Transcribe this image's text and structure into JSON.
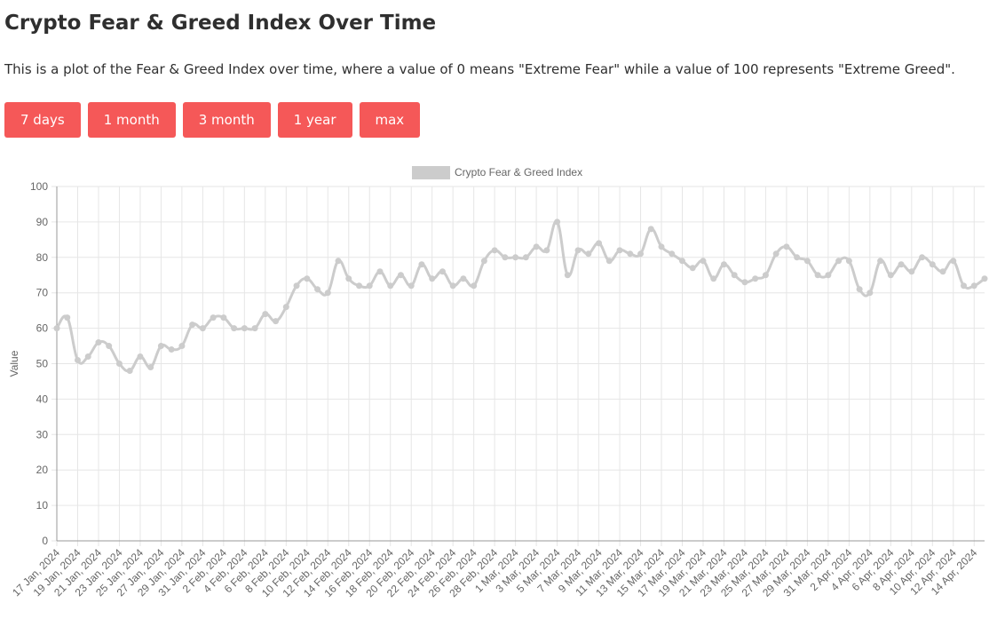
{
  "header": {
    "title": "Crypto Fear & Greed Index Over Time",
    "description": "This is a plot of the Fear & Greed Index over time, where a value of 0 means \"Extreme Fear\" while a value of 100 represents \"Extreme Greed\"."
  },
  "range_buttons": [
    {
      "label": "7 days"
    },
    {
      "label": "1 month"
    },
    {
      "label": "3 month"
    },
    {
      "label": "1 year"
    },
    {
      "label": "max"
    }
  ],
  "colors": {
    "button": "#f55858",
    "line": "#cccccc",
    "grid": "#e6e6e6"
  },
  "chart_data": {
    "type": "line",
    "title": "",
    "xlabel": "",
    "ylabel": "Value",
    "ylim": [
      0,
      100
    ],
    "y_ticks": [
      0,
      10,
      20,
      30,
      40,
      50,
      60,
      70,
      80,
      90,
      100
    ],
    "grid": true,
    "legend_position": "top-center",
    "x": [
      "17 Jan, 2024",
      "18 Jan, 2024",
      "19 Jan, 2024",
      "20 Jan, 2024",
      "21 Jan, 2024",
      "22 Jan, 2024",
      "23 Jan, 2024",
      "24 Jan, 2024",
      "25 Jan, 2024",
      "26 Jan, 2024",
      "27 Jan, 2024",
      "28 Jan, 2024",
      "29 Jan, 2024",
      "30 Jan, 2024",
      "31 Jan, 2024",
      "1 Feb, 2024",
      "2 Feb, 2024",
      "3 Feb, 2024",
      "4 Feb, 2024",
      "5 Feb, 2024",
      "6 Feb, 2024",
      "7 Feb, 2024",
      "8 Feb, 2024",
      "9 Feb, 2024",
      "10 Feb, 2024",
      "11 Feb, 2024",
      "12 Feb, 2024",
      "13 Feb, 2024",
      "14 Feb, 2024",
      "15 Feb, 2024",
      "16 Feb, 2024",
      "17 Feb, 2024",
      "18 Feb, 2024",
      "19 Feb, 2024",
      "20 Feb, 2024",
      "21 Feb, 2024",
      "22 Feb, 2024",
      "23 Feb, 2024",
      "24 Feb, 2024",
      "25 Feb, 2024",
      "26 Feb, 2024",
      "27 Feb, 2024",
      "28 Feb, 2024",
      "29 Feb, 2024",
      "1 Mar, 2024",
      "2 Mar, 2024",
      "3 Mar, 2024",
      "4 Mar, 2024",
      "5 Mar, 2024",
      "6 Mar, 2024",
      "7 Mar, 2024",
      "8 Mar, 2024",
      "9 Mar, 2024",
      "10 Mar, 2024",
      "11 Mar, 2024",
      "12 Mar, 2024",
      "13 Mar, 2024",
      "14 Mar, 2024",
      "15 Mar, 2024",
      "16 Mar, 2024",
      "17 Mar, 2024",
      "18 Mar, 2024",
      "19 Mar, 2024",
      "20 Mar, 2024",
      "21 Mar, 2024",
      "22 Mar, 2024",
      "23 Mar, 2024",
      "24 Mar, 2024",
      "25 Mar, 2024",
      "26 Mar, 2024",
      "27 Mar, 2024",
      "28 Mar, 2024",
      "29 Mar, 2024",
      "30 Mar, 2024",
      "31 Mar, 2024",
      "1 Apr, 2024",
      "2 Apr, 2024",
      "3 Apr, 2024",
      "4 Apr, 2024",
      "5 Apr, 2024",
      "6 Apr, 2024",
      "7 Apr, 2024",
      "8 Apr, 2024",
      "9 Apr, 2024",
      "10 Apr, 2024",
      "11 Apr, 2024",
      "12 Apr, 2024",
      "13 Apr, 2024",
      "14 Apr, 2024",
      "15 Apr, 2024"
    ],
    "series": [
      {
        "name": "Crypto Fear & Greed Index",
        "values": [
          60,
          63,
          51,
          52,
          56,
          55,
          50,
          48,
          52,
          49,
          55,
          54,
          55,
          61,
          60,
          63,
          63,
          60,
          60,
          60,
          64,
          62,
          66,
          72,
          74,
          71,
          70,
          79,
          74,
          72,
          72,
          76,
          72,
          75,
          72,
          78,
          74,
          76,
          72,
          74,
          72,
          79,
          82,
          80,
          80,
          80,
          83,
          82,
          90,
          75,
          82,
          81,
          84,
          79,
          82,
          81,
          81,
          88,
          83,
          81,
          79,
          77,
          79,
          74,
          78,
          75,
          73,
          74,
          75,
          81,
          83,
          80,
          79,
          75,
          75,
          79,
          79,
          71,
          70,
          79,
          75,
          78,
          76,
          80,
          78,
          76,
          79,
          72,
          72,
          74
        ]
      }
    ]
  }
}
